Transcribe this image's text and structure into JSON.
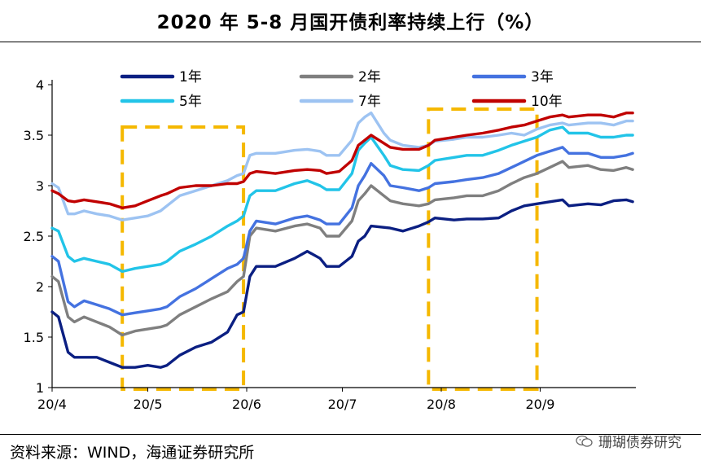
{
  "title": "2020 年 5-8 月国开债利率持续上行（%）",
  "source": "资料来源：WIND，海通证券研究所",
  "watermark": "珊瑚债券研究",
  "chart_data": {
    "type": "line",
    "title": "2020 年 5-8 月国开债利率持续上行（%）",
    "xlabel": "",
    "ylabel": "",
    "ylim": [
      1,
      4
    ],
    "yticks": [
      "1",
      "1.5",
      "2",
      "2.5",
      "3",
      "3.5",
      "4"
    ],
    "xticks": [
      {
        "label": "20/4",
        "t": 0
      },
      {
        "label": "20/5",
        "t": 30
      },
      {
        "label": "20/6",
        "t": 61
      },
      {
        "label": "20/7",
        "t": 91
      },
      {
        "label": "20/8",
        "t": 122
      },
      {
        "label": "20/9",
        "t": 153
      }
    ],
    "t_max": 183,
    "grid": false,
    "legend_position": "top",
    "highlight_periods": [
      {
        "start": 22,
        "end": 60
      },
      {
        "start": 118,
        "end": 152
      }
    ],
    "series": [
      {
        "name": "1年",
        "color": "#0B1F82",
        "points": [
          [
            0,
            1.75
          ],
          [
            2,
            1.7
          ],
          [
            5,
            1.35
          ],
          [
            7,
            1.3
          ],
          [
            10,
            1.3
          ],
          [
            14,
            1.3
          ],
          [
            18,
            1.25
          ],
          [
            22,
            1.2
          ],
          [
            26,
            1.2
          ],
          [
            30,
            1.22
          ],
          [
            34,
            1.2
          ],
          [
            36,
            1.22
          ],
          [
            40,
            1.32
          ],
          [
            45,
            1.4
          ],
          [
            50,
            1.45
          ],
          [
            55,
            1.55
          ],
          [
            58,
            1.72
          ],
          [
            60,
            1.75
          ],
          [
            62,
            2.1
          ],
          [
            64,
            2.2
          ],
          [
            70,
            2.2
          ],
          [
            76,
            2.28
          ],
          [
            80,
            2.35
          ],
          [
            84,
            2.28
          ],
          [
            86,
            2.2
          ],
          [
            90,
            2.2
          ],
          [
            94,
            2.3
          ],
          [
            96,
            2.45
          ],
          [
            98,
            2.5
          ],
          [
            100,
            2.6
          ],
          [
            106,
            2.58
          ],
          [
            110,
            2.55
          ],
          [
            115,
            2.6
          ],
          [
            118,
            2.64
          ],
          [
            120,
            2.68
          ],
          [
            126,
            2.66
          ],
          [
            130,
            2.67
          ],
          [
            135,
            2.67
          ],
          [
            140,
            2.68
          ],
          [
            144,
            2.75
          ],
          [
            148,
            2.8
          ],
          [
            152,
            2.82
          ],
          [
            156,
            2.84
          ],
          [
            160,
            2.86
          ],
          [
            162,
            2.8
          ],
          [
            168,
            2.82
          ],
          [
            172,
            2.81
          ],
          [
            176,
            2.85
          ],
          [
            180,
            2.86
          ],
          [
            182,
            2.84
          ]
        ]
      },
      {
        "name": "2年",
        "color": "#7F7F7F",
        "points": [
          [
            0,
            2.1
          ],
          [
            2,
            2.05
          ],
          [
            5,
            1.7
          ],
          [
            7,
            1.65
          ],
          [
            10,
            1.7
          ],
          [
            14,
            1.65
          ],
          [
            18,
            1.6
          ],
          [
            22,
            1.52
          ],
          [
            26,
            1.56
          ],
          [
            30,
            1.58
          ],
          [
            34,
            1.6
          ],
          [
            36,
            1.62
          ],
          [
            40,
            1.72
          ],
          [
            45,
            1.8
          ],
          [
            50,
            1.88
          ],
          [
            55,
            1.95
          ],
          [
            58,
            2.05
          ],
          [
            60,
            2.1
          ],
          [
            62,
            2.5
          ],
          [
            64,
            2.58
          ],
          [
            70,
            2.55
          ],
          [
            76,
            2.6
          ],
          [
            80,
            2.62
          ],
          [
            84,
            2.58
          ],
          [
            86,
            2.5
          ],
          [
            90,
            2.5
          ],
          [
            94,
            2.65
          ],
          [
            96,
            2.85
          ],
          [
            98,
            2.92
          ],
          [
            100,
            3.0
          ],
          [
            104,
            2.9
          ],
          [
            106,
            2.85
          ],
          [
            110,
            2.82
          ],
          [
            115,
            2.8
          ],
          [
            118,
            2.82
          ],
          [
            120,
            2.86
          ],
          [
            126,
            2.88
          ],
          [
            130,
            2.9
          ],
          [
            135,
            2.9
          ],
          [
            140,
            2.95
          ],
          [
            144,
            3.02
          ],
          [
            148,
            3.08
          ],
          [
            152,
            3.12
          ],
          [
            156,
            3.18
          ],
          [
            160,
            3.24
          ],
          [
            162,
            3.18
          ],
          [
            168,
            3.2
          ],
          [
            172,
            3.16
          ],
          [
            176,
            3.15
          ],
          [
            180,
            3.18
          ],
          [
            182,
            3.16
          ]
        ]
      },
      {
        "name": "3年",
        "color": "#4472E0",
        "points": [
          [
            0,
            2.3
          ],
          [
            2,
            2.25
          ],
          [
            5,
            1.85
          ],
          [
            7,
            1.8
          ],
          [
            10,
            1.86
          ],
          [
            14,
            1.82
          ],
          [
            18,
            1.78
          ],
          [
            22,
            1.72
          ],
          [
            26,
            1.74
          ],
          [
            30,
            1.76
          ],
          [
            34,
            1.78
          ],
          [
            36,
            1.8
          ],
          [
            40,
            1.9
          ],
          [
            45,
            1.98
          ],
          [
            50,
            2.08
          ],
          [
            55,
            2.18
          ],
          [
            58,
            2.22
          ],
          [
            60,
            2.28
          ],
          [
            62,
            2.55
          ],
          [
            64,
            2.65
          ],
          [
            70,
            2.62
          ],
          [
            76,
            2.68
          ],
          [
            80,
            2.7
          ],
          [
            84,
            2.66
          ],
          [
            86,
            2.62
          ],
          [
            90,
            2.62
          ],
          [
            94,
            2.78
          ],
          [
            96,
            3.0
          ],
          [
            98,
            3.1
          ],
          [
            100,
            3.22
          ],
          [
            104,
            3.1
          ],
          [
            106,
            3.0
          ],
          [
            110,
            2.98
          ],
          [
            115,
            2.95
          ],
          [
            118,
            2.98
          ],
          [
            120,
            3.02
          ],
          [
            126,
            3.04
          ],
          [
            130,
            3.06
          ],
          [
            135,
            3.08
          ],
          [
            140,
            3.12
          ],
          [
            144,
            3.18
          ],
          [
            148,
            3.24
          ],
          [
            152,
            3.3
          ],
          [
            156,
            3.34
          ],
          [
            160,
            3.38
          ],
          [
            162,
            3.32
          ],
          [
            168,
            3.32
          ],
          [
            172,
            3.28
          ],
          [
            176,
            3.28
          ],
          [
            180,
            3.3
          ],
          [
            182,
            3.32
          ]
        ]
      },
      {
        "name": "5年",
        "color": "#22C4E8",
        "points": [
          [
            0,
            2.58
          ],
          [
            2,
            2.55
          ],
          [
            5,
            2.3
          ],
          [
            7,
            2.25
          ],
          [
            10,
            2.28
          ],
          [
            14,
            2.25
          ],
          [
            18,
            2.22
          ],
          [
            22,
            2.15
          ],
          [
            26,
            2.18
          ],
          [
            30,
            2.2
          ],
          [
            34,
            2.22
          ],
          [
            36,
            2.25
          ],
          [
            40,
            2.35
          ],
          [
            45,
            2.42
          ],
          [
            50,
            2.5
          ],
          [
            55,
            2.6
          ],
          [
            58,
            2.65
          ],
          [
            60,
            2.7
          ],
          [
            62,
            2.9
          ],
          [
            64,
            2.95
          ],
          [
            70,
            2.95
          ],
          [
            76,
            3.02
          ],
          [
            80,
            3.05
          ],
          [
            84,
            3.0
          ],
          [
            86,
            2.96
          ],
          [
            90,
            2.96
          ],
          [
            94,
            3.12
          ],
          [
            96,
            3.35
          ],
          [
            98,
            3.42
          ],
          [
            100,
            3.48
          ],
          [
            104,
            3.3
          ],
          [
            106,
            3.2
          ],
          [
            110,
            3.16
          ],
          [
            115,
            3.15
          ],
          [
            118,
            3.2
          ],
          [
            120,
            3.25
          ],
          [
            126,
            3.28
          ],
          [
            130,
            3.3
          ],
          [
            135,
            3.3
          ],
          [
            140,
            3.35
          ],
          [
            144,
            3.4
          ],
          [
            148,
            3.44
          ],
          [
            152,
            3.48
          ],
          [
            156,
            3.55
          ],
          [
            160,
            3.58
          ],
          [
            162,
            3.52
          ],
          [
            168,
            3.52
          ],
          [
            172,
            3.48
          ],
          [
            176,
            3.48
          ],
          [
            180,
            3.5
          ],
          [
            182,
            3.5
          ]
        ]
      },
      {
        "name": "7年",
        "color": "#9DC3F2",
        "points": [
          [
            0,
            3.02
          ],
          [
            2,
            2.98
          ],
          [
            5,
            2.72
          ],
          [
            7,
            2.72
          ],
          [
            10,
            2.75
          ],
          [
            14,
            2.72
          ],
          [
            18,
            2.7
          ],
          [
            22,
            2.66
          ],
          [
            26,
            2.68
          ],
          [
            30,
            2.7
          ],
          [
            34,
            2.75
          ],
          [
            36,
            2.8
          ],
          [
            40,
            2.9
          ],
          [
            45,
            2.95
          ],
          [
            50,
            3.0
          ],
          [
            55,
            3.05
          ],
          [
            58,
            3.1
          ],
          [
            60,
            3.12
          ],
          [
            62,
            3.3
          ],
          [
            64,
            3.32
          ],
          [
            70,
            3.32
          ],
          [
            76,
            3.35
          ],
          [
            80,
            3.36
          ],
          [
            84,
            3.34
          ],
          [
            86,
            3.3
          ],
          [
            90,
            3.3
          ],
          [
            94,
            3.45
          ],
          [
            96,
            3.62
          ],
          [
            98,
            3.68
          ],
          [
            100,
            3.72
          ],
          [
            104,
            3.52
          ],
          [
            106,
            3.45
          ],
          [
            110,
            3.4
          ],
          [
            115,
            3.38
          ],
          [
            118,
            3.4
          ],
          [
            120,
            3.44
          ],
          [
            126,
            3.46
          ],
          [
            130,
            3.48
          ],
          [
            135,
            3.48
          ],
          [
            140,
            3.5
          ],
          [
            144,
            3.52
          ],
          [
            148,
            3.5
          ],
          [
            152,
            3.56
          ],
          [
            156,
            3.6
          ],
          [
            160,
            3.62
          ],
          [
            162,
            3.6
          ],
          [
            168,
            3.62
          ],
          [
            172,
            3.62
          ],
          [
            176,
            3.6
          ],
          [
            180,
            3.64
          ],
          [
            182,
            3.64
          ]
        ]
      },
      {
        "name": "10年",
        "color": "#C00000",
        "points": [
          [
            0,
            2.95
          ],
          [
            2,
            2.92
          ],
          [
            5,
            2.85
          ],
          [
            7,
            2.84
          ],
          [
            10,
            2.86
          ],
          [
            14,
            2.84
          ],
          [
            18,
            2.82
          ],
          [
            22,
            2.78
          ],
          [
            26,
            2.8
          ],
          [
            30,
            2.85
          ],
          [
            34,
            2.9
          ],
          [
            36,
            2.92
          ],
          [
            40,
            2.98
          ],
          [
            45,
            3.0
          ],
          [
            50,
            3.0
          ],
          [
            55,
            3.02
          ],
          [
            58,
            3.02
          ],
          [
            60,
            3.04
          ],
          [
            62,
            3.12
          ],
          [
            64,
            3.14
          ],
          [
            70,
            3.12
          ],
          [
            76,
            3.15
          ],
          [
            80,
            3.16
          ],
          [
            84,
            3.15
          ],
          [
            86,
            3.12
          ],
          [
            90,
            3.14
          ],
          [
            94,
            3.25
          ],
          [
            96,
            3.4
          ],
          [
            98,
            3.45
          ],
          [
            100,
            3.5
          ],
          [
            104,
            3.42
          ],
          [
            106,
            3.38
          ],
          [
            110,
            3.36
          ],
          [
            115,
            3.36
          ],
          [
            118,
            3.4
          ],
          [
            120,
            3.45
          ],
          [
            126,
            3.48
          ],
          [
            130,
            3.5
          ],
          [
            135,
            3.52
          ],
          [
            140,
            3.55
          ],
          [
            144,
            3.58
          ],
          [
            148,
            3.6
          ],
          [
            152,
            3.64
          ],
          [
            156,
            3.68
          ],
          [
            160,
            3.7
          ],
          [
            162,
            3.68
          ],
          [
            168,
            3.7
          ],
          [
            172,
            3.7
          ],
          [
            176,
            3.68
          ],
          [
            180,
            3.72
          ],
          [
            182,
            3.72
          ]
        ]
      }
    ]
  }
}
